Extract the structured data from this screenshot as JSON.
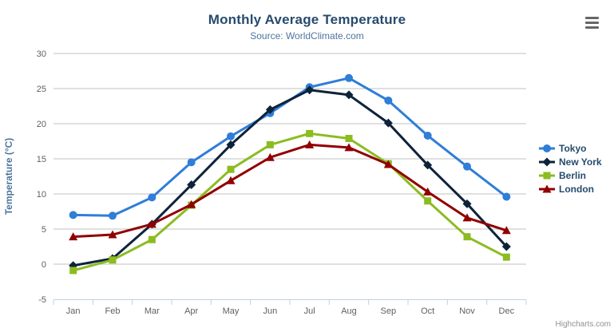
{
  "chart": {
    "title": "Monthly Average Temperature",
    "subtitle": "Source: WorldClimate.com",
    "credit": "Highcharts.com",
    "menu_icon": "hamburger-export-menu-icon"
  },
  "chart_data": {
    "type": "line",
    "title": "Monthly Average Temperature",
    "subtitle": "Source: WorldClimate.com",
    "categories": [
      "Jan",
      "Feb",
      "Mar",
      "Apr",
      "May",
      "Jun",
      "Jul",
      "Aug",
      "Sep",
      "Oct",
      "Nov",
      "Dec"
    ],
    "series": [
      {
        "name": "Tokyo",
        "color": "#2f7ed8",
        "marker": "circle",
        "values": [
          7.0,
          6.9,
          9.5,
          14.5,
          18.2,
          21.5,
          25.2,
          26.5,
          23.3,
          18.3,
          13.9,
          9.6
        ]
      },
      {
        "name": "New York",
        "color": "#0d233a",
        "marker": "diamond",
        "values": [
          -0.2,
          0.8,
          5.7,
          11.3,
          17.0,
          22.0,
          24.8,
          24.1,
          20.1,
          14.1,
          8.6,
          2.5
        ]
      },
      {
        "name": "Berlin",
        "color": "#8bbc21",
        "marker": "square",
        "values": [
          -0.9,
          0.6,
          3.5,
          8.4,
          13.5,
          17.0,
          18.6,
          17.9,
          14.3,
          9.0,
          3.9,
          1.0
        ]
      },
      {
        "name": "London",
        "color": "#910000",
        "marker": "triangle",
        "values": [
          3.9,
          4.2,
          5.7,
          8.5,
          11.9,
          15.2,
          17.0,
          16.6,
          14.2,
          10.3,
          6.6,
          4.8
        ]
      }
    ],
    "xlabel": "",
    "ylabel": "Temperature (°C)",
    "ylim": [
      -5,
      30
    ],
    "yticks": [
      -5,
      0,
      5,
      10,
      15,
      20,
      25,
      30
    ],
    "grid": true,
    "legend_position": "right"
  },
  "colors": {
    "grid": "#c0c0c0",
    "axis_line": "#c0d0e0",
    "tick_label": "#606060",
    "title": "#274b6d",
    "subtitle": "#4d759e",
    "axis_title": "#4d759e",
    "legend_text": "#274b6d",
    "credit": "#909090",
    "menu_icon": "#666666",
    "background": "#ffffff"
  }
}
